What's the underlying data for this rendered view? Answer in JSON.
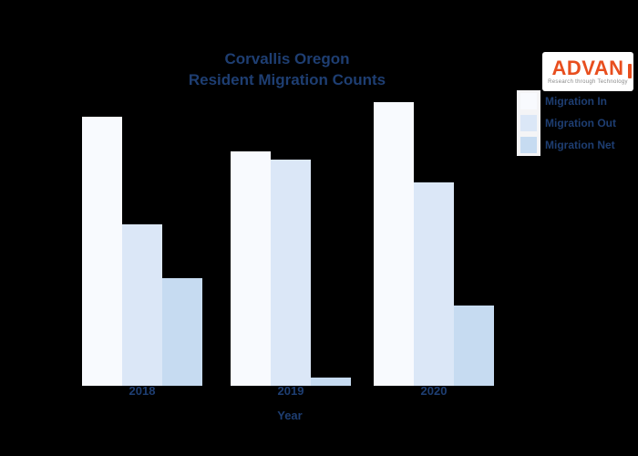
{
  "title": {
    "line1": "Corvallis Oregon",
    "line2": "Resident Migration Counts"
  },
  "logo": {
    "brand": "ADVAN",
    "tagline": "Research through Technology",
    "brand_color": "#e84e1e"
  },
  "xaxis_title": "Year",
  "colors": {
    "background": "#000000",
    "title_text": "#1e3e72",
    "legend_text": "#1e3e72",
    "tick_text": "#1e3e72",
    "logo_background": "#ffffff",
    "logo_tagline_text": "#8a8a8a"
  },
  "chart_data": {
    "type": "bar",
    "title": "Corvallis Oregon Resident Migration Counts",
    "categories": [
      "2018",
      "2019",
      "2020"
    ],
    "series": [
      {
        "name": "Migration In",
        "color": "#f8fafe",
        "values": [
          2950,
          2570,
          3110
        ]
      },
      {
        "name": "Migration Out",
        "color": "#dbe7f7",
        "values": [
          1770,
          2480,
          2230
        ]
      },
      {
        "name": "Migration Net",
        "color": "#c6dbf1",
        "values": [
          1180,
          90,
          880
        ]
      }
    ],
    "xlabel": "Year",
    "ylabel": "",
    "ylim": [
      0,
      3200
    ],
    "grid": false,
    "axes_visible": false,
    "legend_position": "upper right"
  }
}
